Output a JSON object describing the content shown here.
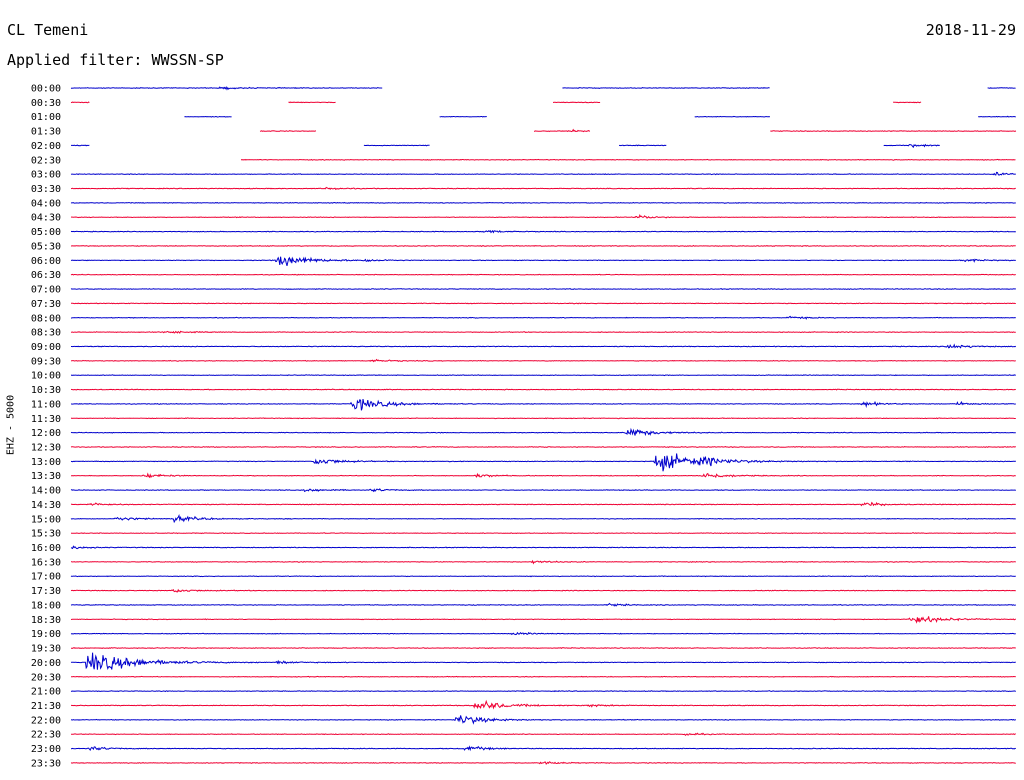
{
  "header": {
    "station": "CL Temeni",
    "date": "2018-11-29",
    "filter_label": "Applied filter: WWSSN-SP"
  },
  "chart_data": {
    "type": "line",
    "title": "CL Temeni",
    "ylabel": "EHZ - 5000",
    "colors": {
      "odd": "#0000cc",
      "even": "#ee0033"
    },
    "hours": 24,
    "trace_minutes": 30,
    "x_unit": "hour fraction of 30-min trace",
    "trace_labels": [
      "00:00",
      "00:30",
      "01:00",
      "01:30",
      "02:00",
      "02:30",
      "03:00",
      "03:30",
      "04:00",
      "04:30",
      "05:00",
      "05:30",
      "06:00",
      "06:30",
      "07:00",
      "07:30",
      "08:00",
      "08:30",
      "09:00",
      "09:30",
      "10:00",
      "10:30",
      "11:00",
      "11:30",
      "12:00",
      "12:30",
      "13:00",
      "13:30",
      "14:00",
      "14:30",
      "15:00",
      "15:30",
      "16:00",
      "16:30",
      "17:00",
      "17:30",
      "18:00",
      "18:30",
      "19:00",
      "19:30",
      "20:00",
      "20:30",
      "21:00",
      "21:30",
      "22:00",
      "22:30",
      "23:00",
      "23:30"
    ],
    "data_segments": {
      "00:00": [
        [
          0.0,
          0.33
        ],
        [
          0.52,
          0.74
        ],
        [
          0.97,
          1.0
        ]
      ],
      "00:30": [
        [
          0.0,
          0.02
        ],
        [
          0.23,
          0.28
        ],
        [
          0.51,
          0.56
        ],
        [
          0.87,
          0.9
        ]
      ],
      "01:00": [
        [
          0.12,
          0.17
        ],
        [
          0.39,
          0.44
        ],
        [
          0.66,
          0.74
        ],
        [
          0.96,
          1.0
        ]
      ],
      "01:30": [
        [
          0.2,
          0.26
        ],
        [
          0.49,
          0.55
        ],
        [
          0.74,
          1.0
        ]
      ],
      "02:00": [
        [
          0.0,
          0.02
        ],
        [
          0.31,
          0.38
        ],
        [
          0.58,
          0.63
        ],
        [
          0.86,
          0.92
        ]
      ],
      "02:30": [
        [
          0.18,
          1.0
        ]
      ]
    },
    "events": [
      {
        "trace": "00:00",
        "x": 0.16,
        "amp": 0.3
      },
      {
        "trace": "01:30",
        "x": 0.53,
        "amp": 0.25
      },
      {
        "trace": "02:00",
        "x": 0.89,
        "amp": 0.35
      },
      {
        "trace": "03:00",
        "x": 0.98,
        "amp": 0.35
      },
      {
        "trace": "03:30",
        "x": 0.27,
        "amp": 0.3
      },
      {
        "trace": "04:30",
        "x": 0.6,
        "amp": 0.45
      },
      {
        "trace": "05:00",
        "x": 0.44,
        "amp": 0.35
      },
      {
        "trace": "06:00",
        "x": 0.22,
        "amp": 1.5
      },
      {
        "trace": "06:00",
        "x": 0.31,
        "amp": 0.35
      },
      {
        "trace": "06:00",
        "x": 0.94,
        "amp": 0.4
      },
      {
        "trace": "08:00",
        "x": 0.76,
        "amp": 0.35
      },
      {
        "trace": "08:30",
        "x": 0.1,
        "amp": 0.35
      },
      {
        "trace": "09:00",
        "x": 0.93,
        "amp": 0.6
      },
      {
        "trace": "09:30",
        "x": 0.32,
        "amp": 0.3
      },
      {
        "trace": "11:00",
        "x": 0.3,
        "amp": 1.6
      },
      {
        "trace": "11:00",
        "x": 0.84,
        "amp": 0.5
      },
      {
        "trace": "11:00",
        "x": 0.94,
        "amp": 0.4
      },
      {
        "trace": "12:00",
        "x": 0.59,
        "amp": 1.1
      },
      {
        "trace": "13:00",
        "x": 0.26,
        "amp": 0.9
      },
      {
        "trace": "13:00",
        "x": 0.62,
        "amp": 2.5
      },
      {
        "trace": "13:00",
        "x": 0.67,
        "amp": 0.6
      },
      {
        "trace": "13:30",
        "x": 0.08,
        "amp": 0.5
      },
      {
        "trace": "13:30",
        "x": 0.43,
        "amp": 0.4
      },
      {
        "trace": "13:30",
        "x": 0.67,
        "amp": 0.8
      },
      {
        "trace": "14:00",
        "x": 0.25,
        "amp": 0.45
      },
      {
        "trace": "14:00",
        "x": 0.32,
        "amp": 0.35
      },
      {
        "trace": "14:30",
        "x": 0.02,
        "amp": 0.35
      },
      {
        "trace": "14:30",
        "x": 0.84,
        "amp": 0.5
      },
      {
        "trace": "15:00",
        "x": 0.05,
        "amp": 0.5
      },
      {
        "trace": "15:00",
        "x": 0.11,
        "amp": 0.8
      },
      {
        "trace": "16:00",
        "x": 0.0,
        "amp": 0.35
      },
      {
        "trace": "16:30",
        "x": 0.49,
        "amp": 0.35
      },
      {
        "trace": "17:30",
        "x": 0.11,
        "amp": 0.45
      },
      {
        "trace": "18:00",
        "x": 0.57,
        "amp": 0.3
      },
      {
        "trace": "18:30",
        "x": 0.89,
        "amp": 1.2
      },
      {
        "trace": "19:00",
        "x": 0.47,
        "amp": 0.3
      },
      {
        "trace": "20:00",
        "x": 0.02,
        "amp": 2.8
      },
      {
        "trace": "20:00",
        "x": 0.22,
        "amp": 0.35
      },
      {
        "trace": "21:30",
        "x": 0.43,
        "amp": 1.3
      },
      {
        "trace": "21:30",
        "x": 0.55,
        "amp": 0.3
      },
      {
        "trace": "22:00",
        "x": 0.41,
        "amp": 1.3
      },
      {
        "trace": "22:30",
        "x": 0.65,
        "amp": 0.3
      },
      {
        "trace": "23:00",
        "x": 0.02,
        "amp": 0.5
      },
      {
        "trace": "23:00",
        "x": 0.42,
        "amp": 0.6
      },
      {
        "trace": "23:30",
        "x": 0.5,
        "amp": 0.35
      }
    ]
  }
}
